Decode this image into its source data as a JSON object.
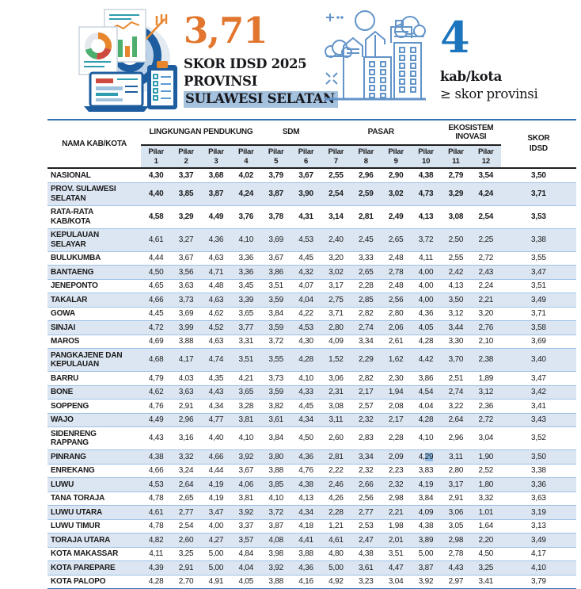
{
  "header": {
    "score": "3,71",
    "score_caption_line1": "SKOR IDSD 2025",
    "score_caption_line2": "PROVINSI",
    "score_caption_line3": "SULAWESI SELATAN",
    "count": "4",
    "count_caption_line1": "kab/kota",
    "count_caption_line2": "≥ skor provinsi"
  },
  "colors": {
    "accent_orange": "#e2762e",
    "accent_blue": "#1b74bc",
    "province_highlight": "#a4c2de",
    "row_shade": "#dce6f2",
    "pilar_band": "#d9e4f1",
    "row_line": "#9cc2e5",
    "table_top_line": "#2e74b5",
    "header_dark_line": "#1f1f1f",
    "cell_selection": "#8fbbe3",
    "illustration_navy": "#1d5c9e",
    "illustration_line_blue": "#6394c9"
  },
  "icons": [
    "analytics-target-illustration",
    "city-buildings-illustration"
  ],
  "table": {
    "name_header": "NAMA KAB/KOTA",
    "skor_header": "SKOR\nIDSD",
    "groups": [
      {
        "label": "LINGKUNGAN PENDUKUNG",
        "span": 4
      },
      {
        "label": "SDM",
        "span": 2
      },
      {
        "label": "PASAR",
        "span": 4
      },
      {
        "label": "EKOSISTEM\nINOVASI",
        "span": 2
      }
    ],
    "pillar_label": "Pilar",
    "pillar_numbers": [
      "1",
      "2",
      "3",
      "4",
      "5",
      "6",
      "7",
      "8",
      "9",
      "10",
      "11",
      "12"
    ],
    "selection": {
      "row": 17,
      "col": 9,
      "pre": "4,",
      "sel": "29"
    },
    "rows": [
      {
        "name": "NASIONAL",
        "bold": true,
        "values": [
          "4,30",
          "3,37",
          "3,68",
          "4,02",
          "3,79",
          "3,67",
          "2,55",
          "2,96",
          "2,90",
          "4,38",
          "2,79",
          "3,54"
        ],
        "skor": "3,50"
      },
      {
        "name": "PROV. SULAWESI\nSELATAN",
        "bold": true,
        "values": [
          "4,40",
          "3,85",
          "3,87",
          "4,24",
          "3,87",
          "3,90",
          "2,54",
          "2,59",
          "3,02",
          "4,73",
          "3,29",
          "4,24"
        ],
        "skor": "3,71"
      },
      {
        "name": "RATA-RATA\nKAB/KOTA",
        "bold": true,
        "values": [
          "4,58",
          "3,29",
          "4,49",
          "3,76",
          "3,78",
          "4,31",
          "3,14",
          "2,81",
          "2,49",
          "4,13",
          "3,08",
          "2,54"
        ],
        "skor": "3,53"
      },
      {
        "name": "KEPULAUAN\nSELAYAR",
        "values": [
          "4,61",
          "3,27",
          "4,36",
          "4,10",
          "3,69",
          "4,53",
          "2,40",
          "2,45",
          "2,65",
          "3,72",
          "2,50",
          "2,25"
        ],
        "skor": "3,38"
      },
      {
        "name": "BULUKUMBA",
        "values": [
          "4,44",
          "3,67",
          "4,63",
          "3,36",
          "3,67",
          "4,45",
          "3,20",
          "3,33",
          "2,48",
          "4,11",
          "2,55",
          "2,72"
        ],
        "skor": "3,55"
      },
      {
        "name": "BANTAENG",
        "values": [
          "4,50",
          "3,56",
          "4,71",
          "3,36",
          "3,86",
          "4,32",
          "3,02",
          "2,65",
          "2,78",
          "4,00",
          "2,42",
          "2,43"
        ],
        "skor": "3,47"
      },
      {
        "name": "JENEPONTO",
        "values": [
          "4,65",
          "3,63",
          "4,48",
          "3,45",
          "3,51",
          "4,07",
          "3,17",
          "2,28",
          "2,48",
          "4,00",
          "4,13",
          "2,24"
        ],
        "skor": "3,51"
      },
      {
        "name": "TAKALAR",
        "values": [
          "4,66",
          "3,73",
          "4,63",
          "3,39",
          "3,59",
          "4,04",
          "2,75",
          "2,85",
          "2,56",
          "4,00",
          "3,50",
          "2,21"
        ],
        "skor": "3,49"
      },
      {
        "name": "GOWA",
        "values": [
          "4,45",
          "3,69",
          "4,62",
          "3,65",
          "3,84",
          "4,22",
          "3,71",
          "2,82",
          "2,80",
          "4,36",
          "3,12",
          "3,20"
        ],
        "skor": "3,71"
      },
      {
        "name": "SINJAI",
        "values": [
          "4,72",
          "3,99",
          "4,52",
          "3,77",
          "3,59",
          "4,53",
          "2,80",
          "2,74",
          "2,06",
          "4,05",
          "3,44",
          "2,76"
        ],
        "skor": "3,58"
      },
      {
        "name": "MAROS",
        "values": [
          "4,69",
          "3,88",
          "4,63",
          "3,31",
          "3,72",
          "4,30",
          "4,09",
          "3,34",
          "2,61",
          "4,28",
          "3,30",
          "2,10"
        ],
        "skor": "3,69"
      },
      {
        "name": "PANGKAJENE DAN\nKEPULAUAN",
        "values": [
          "4,68",
          "4,17",
          "4,74",
          "3,51",
          "3,55",
          "4,28",
          "1,52",
          "2,29",
          "1,62",
          "4,42",
          "3,70",
          "2,38"
        ],
        "skor": "3,40"
      },
      {
        "name": "BARRU",
        "values": [
          "4,79",
          "4,03",
          "4,35",
          "4,21",
          "3,73",
          "4,10",
          "3,06",
          "2,82",
          "2,30",
          "3,86",
          "2,51",
          "1,89"
        ],
        "skor": "3,47"
      },
      {
        "name": "BONE",
        "values": [
          "4,62",
          "3,63",
          "4,43",
          "3,65",
          "3,59",
          "4,33",
          "2,31",
          "2,17",
          "1,94",
          "4,54",
          "2,74",
          "3,12"
        ],
        "skor": "3,42"
      },
      {
        "name": "SOPPENG",
        "values": [
          "4,76",
          "2,91",
          "4,34",
          "3,28",
          "3,82",
          "4,45",
          "3,08",
          "2,57",
          "2,08",
          "4,04",
          "3,22",
          "2,36"
        ],
        "skor": "3,41"
      },
      {
        "name": "WAJO",
        "values": [
          "4,49",
          "2,96",
          "4,77",
          "3,81",
          "3,61",
          "4,34",
          "3,11",
          "2,32",
          "2,17",
          "4,28",
          "2,64",
          "2,72"
        ],
        "skor": "3,43"
      },
      {
        "name": "SIDENRENG\nRAPPANG",
        "values": [
          "4,43",
          "3,16",
          "4,40",
          "4,10",
          "3,84",
          "4,50",
          "2,60",
          "2,83",
          "2,28",
          "4,10",
          "2,96",
          "3,04"
        ],
        "skor": "3,52"
      },
      {
        "name": "PINRANG",
        "values": [
          "4,38",
          "3,32",
          "4,66",
          "3,92",
          "3,80",
          "4,36",
          "2,81",
          "3,34",
          "2,09",
          "4,29",
          "3,11",
          "1,90"
        ],
        "skor": "3,50"
      },
      {
        "name": "ENREKANG",
        "values": [
          "4,66",
          "3,24",
          "4,44",
          "3,67",
          "3,88",
          "4,76",
          "2,22",
          "2,32",
          "2,23",
          "3,83",
          "2,80",
          "2,52"
        ],
        "skor": "3,38"
      },
      {
        "name": "LUWU",
        "values": [
          "4,53",
          "2,64",
          "4,19",
          "4,06",
          "3,85",
          "4,38",
          "2,46",
          "2,66",
          "2,32",
          "4,19",
          "3,17",
          "1,80"
        ],
        "skor": "3,36"
      },
      {
        "name": "TANA TORAJA",
        "values": [
          "4,78",
          "2,65",
          "4,19",
          "3,81",
          "4,10",
          "4,13",
          "4,26",
          "2,56",
          "2,98",
          "3,84",
          "2,91",
          "3,32"
        ],
        "skor": "3,63"
      },
      {
        "name": "LUWU UTARA",
        "values": [
          "4,61",
          "2,77",
          "3,47",
          "3,92",
          "3,72",
          "4,34",
          "2,28",
          "2,77",
          "2,21",
          "4,09",
          "3,06",
          "1,01"
        ],
        "skor": "3,19"
      },
      {
        "name": "LUWU TIMUR",
        "values": [
          "4,78",
          "2,54",
          "4,00",
          "3,37",
          "3,87",
          "4,18",
          "1,21",
          "2,53",
          "1,98",
          "4,38",
          "3,05",
          "1,64"
        ],
        "skor": "3,13"
      },
      {
        "name": "TORAJA UTARA",
        "values": [
          "4,82",
          "2,60",
          "4,27",
          "3,57",
          "4,08",
          "4,41",
          "4,61",
          "2,47",
          "2,01",
          "3,89",
          "2,98",
          "2,20"
        ],
        "skor": "3,49"
      },
      {
        "name": "KOTA MAKASSAR",
        "values": [
          "4,11",
          "3,25",
          "5,00",
          "4,84",
          "3,98",
          "3,88",
          "4,80",
          "4,38",
          "3,51",
          "5,00",
          "2,78",
          "4,50"
        ],
        "skor": "4,17"
      },
      {
        "name": "KOTA PAREPARE",
        "values": [
          "4,39",
          "2,91",
          "5,00",
          "4,04",
          "3,92",
          "4,36",
          "5,00",
          "3,61",
          "4,47",
          "3,87",
          "4,43",
          "3,25"
        ],
        "skor": "4,10"
      },
      {
        "name": "KOTA PALOPO",
        "values": [
          "4,28",
          "2,70",
          "4,91",
          "4,05",
          "3,88",
          "4,16",
          "4,92",
          "3,23",
          "3,04",
          "3,92",
          "2,97",
          "3,41"
        ],
        "skor": "3,79"
      }
    ]
  }
}
